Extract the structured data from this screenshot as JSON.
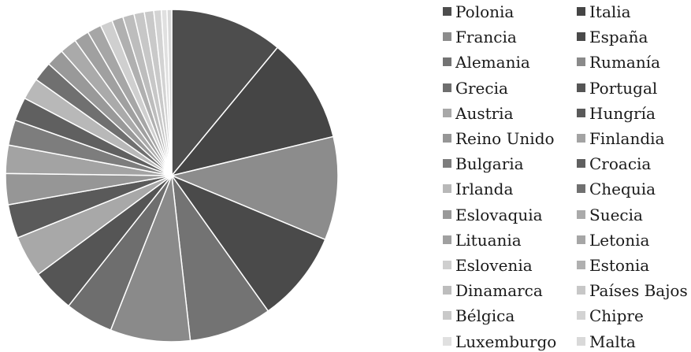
{
  "chart_data": {
    "type": "pie",
    "title": "",
    "start_angle_deg": 0,
    "direction": "clockwise",
    "legend_position": "right",
    "legend_columns": 2,
    "series": [
      {
        "name": "Polonia",
        "value": 12.0,
        "color": "#4d4d4d"
      },
      {
        "name": "Italia",
        "value": 11.2,
        "color": "#454545"
      },
      {
        "name": "Francia",
        "value": 11.0,
        "color": "#8c8c8c"
      },
      {
        "name": "España",
        "value": 9.7,
        "color": "#4a4a4a"
      },
      {
        "name": "Alemania",
        "value": 8.8,
        "color": "#737373"
      },
      {
        "name": "Rumanía",
        "value": 8.5,
        "color": "#8a8a8a"
      },
      {
        "name": "Grecia",
        "value": 5.1,
        "color": "#6e6e6e"
      },
      {
        "name": "Portugal",
        "value": 4.6,
        "color": "#555555"
      },
      {
        "name": "Austria",
        "value": 4.4,
        "color": "#a8a8a8"
      },
      {
        "name": "Hungría",
        "value": 3.6,
        "color": "#5a5a5a"
      },
      {
        "name": "Reino Unido",
        "value": 3.3,
        "color": "#969696"
      },
      {
        "name": "Finlandia",
        "value": 3.0,
        "color": "#a3a3a3"
      },
      {
        "name": "Bulgaria",
        "value": 2.7,
        "color": "#7d7d7d"
      },
      {
        "name": "Croacia",
        "value": 2.5,
        "color": "#606060"
      },
      {
        "name": "Irlanda",
        "value": 2.3,
        "color": "#b8b8b8"
      },
      {
        "name": "Chequia",
        "value": 2.1,
        "color": "#707070"
      },
      {
        "name": "Eslovaquia",
        "value": 1.9,
        "color": "#999999"
      },
      {
        "name": "Suecia",
        "value": 1.8,
        "color": "#aaaaaa"
      },
      {
        "name": "Lituania",
        "value": 1.6,
        "color": "#a0a0a0"
      },
      {
        "name": "Letonia",
        "value": 1.5,
        "color": "#a6a6a6"
      },
      {
        "name": "Eslovenia",
        "value": 1.3,
        "color": "#cfcfcf"
      },
      {
        "name": "Estonia",
        "value": 1.2,
        "color": "#b0b0b0"
      },
      {
        "name": "Dinamarca",
        "value": 1.2,
        "color": "#bdbdbd"
      },
      {
        "name": "Países Bajos",
        "value": 1.1,
        "color": "#c7c7c7"
      },
      {
        "name": "Bélgica",
        "value": 1.0,
        "color": "#c9c9c9"
      },
      {
        "name": "Chipre",
        "value": 0.8,
        "color": "#d3d3d3"
      },
      {
        "name": "Luxemburgo",
        "value": 0.6,
        "color": "#e0e0e0"
      },
      {
        "name": "Malta",
        "value": 0.5,
        "color": "#d9d9d9"
      }
    ]
  }
}
